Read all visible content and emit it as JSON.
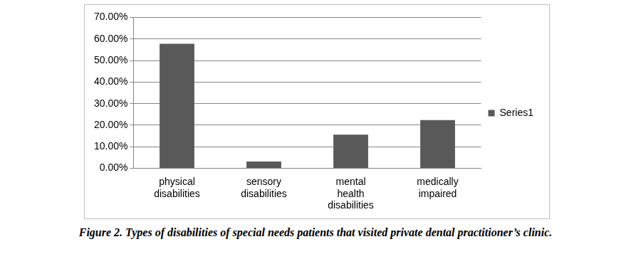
{
  "chart_data": {
    "type": "bar",
    "title": "Figure 2. Types of disabilities of special needs patients that visited private dental practitioner’s clinic.",
    "categories": [
      "physical disabilities",
      "sensory disabilities",
      "mental health disabilities",
      "medically impaired"
    ],
    "series": [
      {
        "name": "Series1",
        "color": "#595959",
        "values": [
          57.8,
          3.2,
          15.6,
          22.4
        ]
      }
    ],
    "ylim": [
      0,
      70
    ],
    "yticks": [
      {
        "value": 0,
        "label": "0.00%"
      },
      {
        "value": 10,
        "label": "10.00%"
      },
      {
        "value": 20,
        "label": "20.00%"
      },
      {
        "value": 30,
        "label": "30.00%"
      },
      {
        "value": 40,
        "label": "40.00%"
      },
      {
        "value": 50,
        "label": "50.00%"
      },
      {
        "value": 60,
        "label": "60.00%"
      },
      {
        "value": 70,
        "label": "70.00%"
      }
    ],
    "grid": true,
    "legend": "right"
  }
}
